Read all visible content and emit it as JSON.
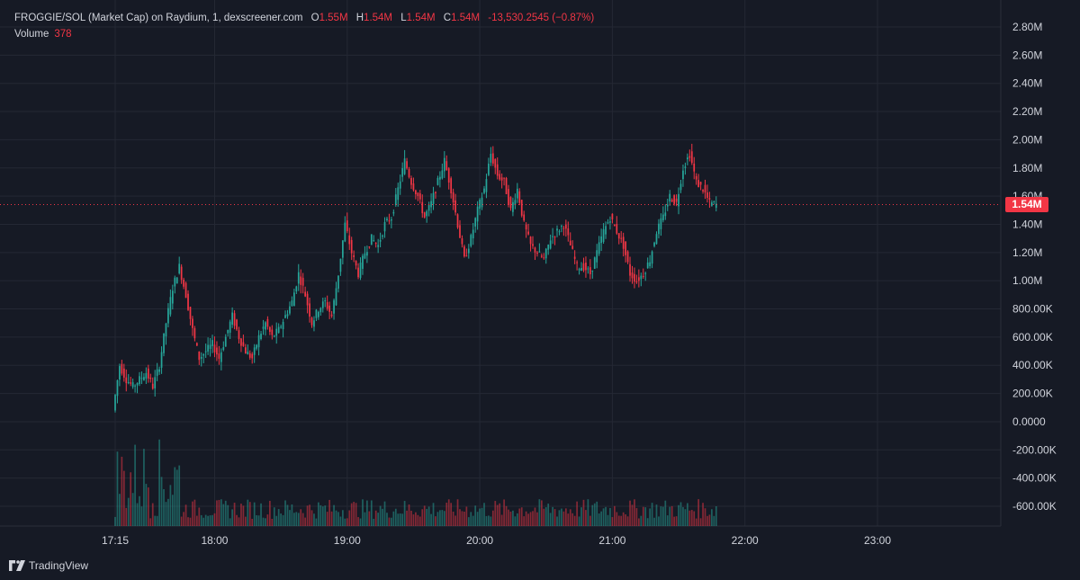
{
  "header": {
    "title": "FROGGIE/SOL (Market Cap) on Raydium, 1, dexscreener.com",
    "open_label": "O",
    "open_value": "1.55M",
    "high_label": "H",
    "high_value": "1.54M",
    "low_label": "L",
    "low_value": "1.54M",
    "close_label": "C",
    "close_value": "1.54M",
    "change": "-13,530.2545 (−0.87%)",
    "volume_label": "Volume",
    "volume_value": "378"
  },
  "price_badge": "1.54M",
  "brand": {
    "name": "TradingView",
    "icon": "tradingview-logo-icon"
  },
  "colors": {
    "background": "#161a25",
    "up": "#26a69a",
    "down": "#f23645",
    "grid": "#242834",
    "text": "#d1d4dc"
  },
  "chart_data": {
    "type": "candlestick",
    "y_axis_ticks": [
      "2.80M",
      "2.60M",
      "2.40M",
      "2.20M",
      "2.00M",
      "1.80M",
      "1.60M",
      "1.40M",
      "1.20M",
      "1.00M",
      "800.00K",
      "600.00K",
      "400.00K",
      "200.00K",
      "0.0000",
      "-200.00K",
      "-400.00K",
      "-600.00K"
    ],
    "y_axis_values": [
      2800000,
      2600000,
      2400000,
      2200000,
      2000000,
      1800000,
      1600000,
      1400000,
      1200000,
      1000000,
      800000,
      600000,
      400000,
      200000,
      0,
      -200000,
      -400000,
      -600000
    ],
    "x_axis_ticks": [
      "17:15",
      "18:00",
      "19:00",
      "20:00",
      "21:00",
      "22:00",
      "23:00"
    ],
    "x_axis_minutes": [
      0,
      45,
      105,
      165,
      225,
      285,
      345
    ],
    "ylim": [
      -700000,
      2900000
    ],
    "xlim_minutes": [
      -3,
      370
    ],
    "last_price": 1540000,
    "series_close_path": [
      [
        0,
        80000
      ],
      [
        3,
        400000
      ],
      [
        6,
        300000
      ],
      [
        9,
        250000
      ],
      [
        12,
        300000
      ],
      [
        15,
        350000
      ],
      [
        18,
        250000
      ],
      [
        21,
        400000
      ],
      [
        24,
        700000
      ],
      [
        27,
        950000
      ],
      [
        30,
        1100000
      ],
      [
        33,
        900000
      ],
      [
        36,
        650000
      ],
      [
        39,
        450000
      ],
      [
        42,
        500000
      ],
      [
        45,
        550000
      ],
      [
        48,
        450000
      ],
      [
        51,
        600000
      ],
      [
        54,
        750000
      ],
      [
        57,
        600000
      ],
      [
        60,
        500000
      ],
      [
        63,
        450000
      ],
      [
        66,
        600000
      ],
      [
        69,
        700000
      ],
      [
        72,
        600000
      ],
      [
        75,
        650000
      ],
      [
        78,
        750000
      ],
      [
        81,
        850000
      ],
      [
        84,
        1050000
      ],
      [
        87,
        900000
      ],
      [
        90,
        700000
      ],
      [
        93,
        800000
      ],
      [
        96,
        850000
      ],
      [
        99,
        750000
      ],
      [
        102,
        1050000
      ],
      [
        105,
        1400000
      ],
      [
        108,
        1200000
      ],
      [
        111,
        1050000
      ],
      [
        114,
        1200000
      ],
      [
        117,
        1300000
      ],
      [
        120,
        1250000
      ],
      [
        123,
        1400000
      ],
      [
        126,
        1450000
      ],
      [
        129,
        1650000
      ],
      [
        132,
        1850000
      ],
      [
        135,
        1700000
      ],
      [
        138,
        1600000
      ],
      [
        141,
        1450000
      ],
      [
        144,
        1550000
      ],
      [
        147,
        1700000
      ],
      [
        150,
        1850000
      ],
      [
        153,
        1650000
      ],
      [
        156,
        1400000
      ],
      [
        159,
        1150000
      ],
      [
        162,
        1300000
      ],
      [
        165,
        1500000
      ],
      [
        168,
        1650000
      ],
      [
        171,
        1900000
      ],
      [
        174,
        1750000
      ],
      [
        177,
        1700000
      ],
      [
        180,
        1500000
      ],
      [
        183,
        1650000
      ],
      [
        186,
        1400000
      ],
      [
        189,
        1250000
      ],
      [
        192,
        1200000
      ],
      [
        195,
        1150000
      ],
      [
        198,
        1300000
      ],
      [
        201,
        1350000
      ],
      [
        204,
        1400000
      ],
      [
        207,
        1250000
      ],
      [
        210,
        1100000
      ],
      [
        213,
        1100000
      ],
      [
        216,
        1050000
      ],
      [
        219,
        1200000
      ],
      [
        222,
        1350000
      ],
      [
        225,
        1450000
      ],
      [
        228,
        1350000
      ],
      [
        231,
        1250000
      ],
      [
        234,
        1050000
      ],
      [
        237,
        1000000
      ],
      [
        240,
        1050000
      ],
      [
        243,
        1150000
      ],
      [
        246,
        1350000
      ],
      [
        249,
        1450000
      ],
      [
        252,
        1600000
      ],
      [
        255,
        1550000
      ],
      [
        258,
        1800000
      ],
      [
        261,
        1900000
      ],
      [
        264,
        1700000
      ],
      [
        267,
        1650000
      ],
      [
        270,
        1550000
      ],
      [
        273,
        1540000
      ]
    ],
    "volume_note": "volume histogram bars shown at bottom",
    "grid": true,
    "legend": "top-left"
  }
}
